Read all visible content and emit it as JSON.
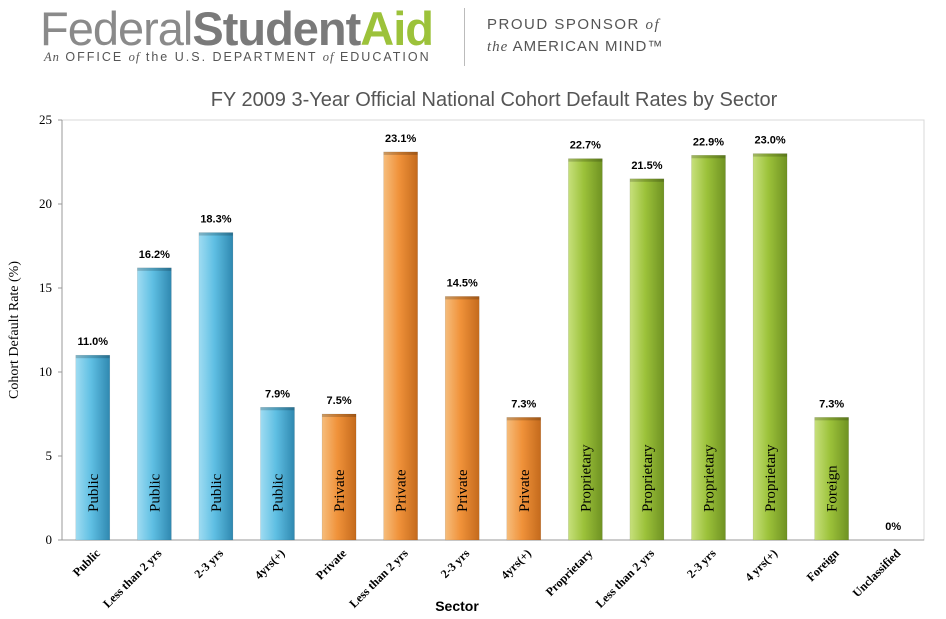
{
  "header": {
    "logo_part1": "Federal",
    "logo_part2": "Student",
    "logo_part3": "Aid",
    "tagline_prefix": "An",
    "tagline_mid1": " OFFICE ",
    "tagline_of1": "of",
    "tagline_mid2": " the ",
    "tagline_mid3": "U.S. DEPARTMENT ",
    "tagline_of2": "of",
    "tagline_end": " EDUCATION",
    "sponsor_line1_a": "PROUD SPONSOR ",
    "sponsor_line1_b": "of",
    "sponsor_line2_a": "the",
    "sponsor_line2_b": " AMERICAN MIND™"
  },
  "colors": {
    "public": "#5fbfe3",
    "private": "#f0923a",
    "proprietary": "#9cc23a",
    "foreign": "#9cc23a"
  },
  "chart_data": {
    "type": "bar",
    "title": "FY 2009 3-Year Official National Cohort Default Rates by Sector",
    "xlabel": "Sector",
    "ylabel": "Cohort Default Rate (%)",
    "ylim": [
      0,
      25
    ],
    "yticks": [
      "0",
      "5",
      "10",
      "15",
      "20",
      "25"
    ],
    "grid": false,
    "categories": [
      "Public",
      "Less than 2 yrs",
      "2-3 yrs",
      "4yrs(+)",
      "Private",
      "Less than 2 yrs",
      "2-3 yrs",
      "4yrs(+)",
      "Proprietary",
      "Less than 2 yrs",
      "2-3 yrs",
      "4 yrs(+)",
      "Foreign",
      "Unclassified"
    ],
    "values": [
      11.0,
      16.2,
      18.3,
      7.9,
      7.5,
      23.1,
      14.5,
      7.3,
      22.7,
      21.5,
      22.9,
      23.0,
      7.3,
      0
    ],
    "value_labels": [
      "11.0%",
      "16.2%",
      "18.3%",
      "7.9%",
      "7.5%",
      "23.1%",
      "14.5%",
      "7.3%",
      "22.7%",
      "21.5%",
      "22.9%",
      "23.0%",
      "7.3%",
      "0%"
    ],
    "bar_texts": [
      "Public",
      "Public",
      "Public",
      "Public",
      "Private",
      "Private",
      "Private",
      "Private",
      "Proprietary",
      "Proprietary",
      "Proprietary",
      "Proprietary",
      "Foreign",
      ""
    ],
    "groups": [
      "public",
      "public",
      "public",
      "public",
      "private",
      "private",
      "private",
      "private",
      "proprietary",
      "proprietary",
      "proprietary",
      "proprietary",
      "foreign",
      "unclassified"
    ]
  }
}
